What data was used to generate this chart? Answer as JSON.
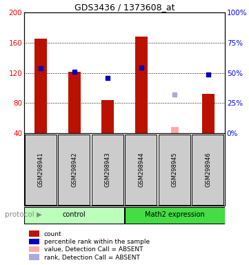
{
  "title": "GDS3436 / 1373608_at",
  "samples": [
    "GSM298941",
    "GSM298942",
    "GSM298943",
    "GSM298944",
    "GSM298945",
    "GSM298946"
  ],
  "red_bars": [
    165,
    121,
    84,
    168,
    null,
    92
  ],
  "pink_bars": [
    null,
    null,
    null,
    null,
    48,
    null
  ],
  "blue_squares": [
    126,
    121,
    113,
    127,
    null,
    118
  ],
  "lavender_squares": [
    null,
    null,
    null,
    null,
    91,
    null
  ],
  "ylim_left": [
    40,
    200
  ],
  "ylim_right": [
    0,
    100
  ],
  "yticks_left": [
    40,
    80,
    120,
    160,
    200
  ],
  "yticks_right": [
    0,
    25,
    50,
    75,
    100
  ],
  "groups": [
    {
      "label": "control",
      "indices": [
        0,
        1,
        2
      ],
      "color": "#bbffbb"
    },
    {
      "label": "Math2 expression",
      "indices": [
        3,
        4,
        5
      ],
      "color": "#44dd44"
    }
  ],
  "bar_color_red": "#bb1100",
  "bar_color_pink": "#ffaaaa",
  "sq_color_blue": "#0000bb",
  "sq_color_lavender": "#aaaadd",
  "bar_width": 0.38,
  "pink_bar_width": 0.22,
  "protocol_label": "protocol",
  "protocol_arrow": "▶",
  "legend_items": [
    {
      "color": "#bb1100",
      "label": "count"
    },
    {
      "color": "#0000bb",
      "label": "percentile rank within the sample"
    },
    {
      "color": "#ffaaaa",
      "label": "value, Detection Call = ABSENT"
    },
    {
      "color": "#aaaadd",
      "label": "rank, Detection Call = ABSENT"
    }
  ],
  "fig_width": 3.61,
  "fig_height": 3.84,
  "dpi": 100
}
